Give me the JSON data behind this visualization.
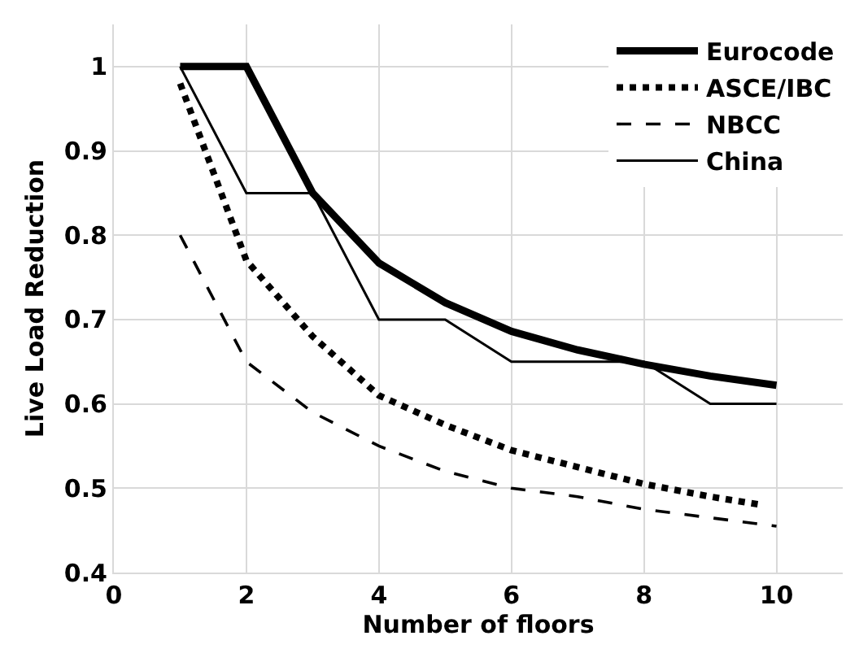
{
  "chart_data": {
    "type": "line",
    "xlabel": "Number of floors",
    "ylabel": "Live Load Reduction",
    "xlim": [
      0,
      11
    ],
    "xticks": [
      0,
      2,
      4,
      6,
      8,
      10
    ],
    "ylim": [
      0.4,
      1.05
    ],
    "yticks": [
      0.4,
      0.5,
      0.6,
      0.7,
      0.8,
      0.9,
      1
    ],
    "grid": true,
    "legend": "top right",
    "marker": "none",
    "series": [
      {
        "name": "Eurocode",
        "color": "#000000",
        "line_style": "solid",
        "x": [
          1,
          2,
          3,
          4,
          5,
          6,
          7,
          8,
          9,
          10
        ],
        "values": [
          1,
          1,
          0.85,
          0.767,
          0.72,
          0.686,
          0.664,
          0.647,
          0.633,
          0.622
        ]
      },
      {
        "name": "ASCE/IBC",
        "color": "#000000",
        "line_style": "dotted",
        "x": [
          1,
          2,
          3,
          4,
          5,
          6,
          7,
          8,
          9,
          9.8
        ],
        "values": [
          0.98,
          0.77,
          0.68,
          0.61,
          0.575,
          0.545,
          0.525,
          0.505,
          0.49,
          0.48
        ]
      },
      {
        "name": "NBCC",
        "color": "#000000",
        "line_style": "dashed",
        "x": [
          1,
          2,
          3,
          4,
          5,
          6,
          7,
          8,
          9,
          10
        ],
        "values": [
          0.8,
          0.65,
          0.59,
          0.55,
          0.52,
          0.5,
          0.49,
          0.475,
          0.465,
          0.455
        ]
      },
      {
        "name": "China",
        "color": "#000000",
        "line_style": "solid",
        "x": [
          1,
          2,
          3,
          4,
          5,
          6,
          7,
          8,
          9,
          10
        ],
        "values": [
          1,
          0.85,
          0.85,
          0.7,
          0.7,
          0.65,
          0.65,
          0.65,
          0.6,
          0.6
        ]
      }
    ]
  }
}
